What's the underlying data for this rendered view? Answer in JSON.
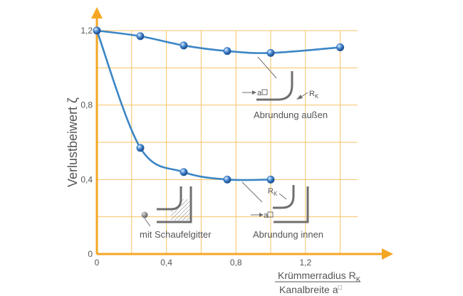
{
  "chart_data": {
    "type": "line",
    "ylabel": "Verlustbeiwert ζ",
    "xlabel": {
      "numerator": "Krümmerradius R",
      "numerator_sub": "K",
      "denominator": "Kanalbreite a",
      "denominator_sup": "□"
    },
    "xlim": [
      0,
      1.5
    ],
    "ylim": [
      0,
      1.2
    ],
    "x_ticks": [
      "0",
      "0,4",
      "0,8",
      "1,2"
    ],
    "y_ticks": [
      "0",
      "0,4",
      "0,8",
      "1,2"
    ],
    "grid": true,
    "series": [
      {
        "id": "aussen",
        "name": "Abrundung außen",
        "x": [
          0,
          0.25,
          0.5,
          0.75,
          1.0,
          1.4
        ],
        "y": [
          1.2,
          1.17,
          1.12,
          1.09,
          1.08,
          1.11
        ]
      },
      {
        "id": "innen",
        "name": "Abrundung innen",
        "x": [
          0,
          0.25,
          0.5,
          0.75,
          1.0
        ],
        "y": [
          1.2,
          0.57,
          0.44,
          0.4,
          0.4
        ]
      }
    ],
    "annotations": {
      "aussen": {
        "label": "Abrundung außen",
        "a_label": "a",
        "r_label": "R",
        "r_sub": "K"
      },
      "innen": {
        "label": "Abrundung innen",
        "a_label": "a",
        "r_label": "R",
        "r_sub": "K"
      },
      "schaufel": {
        "label": "mit Schaufelgitter"
      }
    },
    "colors": {
      "axis": "#f5a623",
      "grid": "#f7c266",
      "curve": "#3b86c5",
      "marker": "#2f6db3",
      "sketch": "#6f6f6f",
      "text": "#555555"
    }
  }
}
